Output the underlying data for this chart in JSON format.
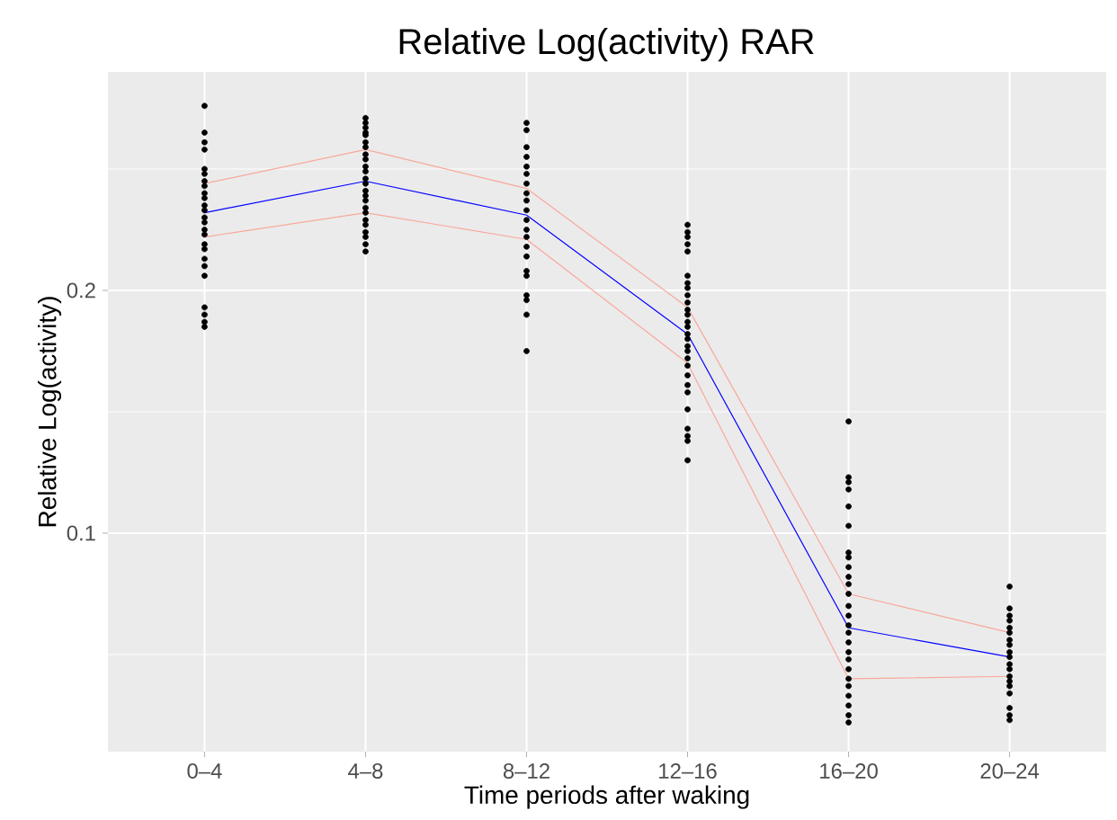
{
  "chart_data": {
    "type": "line",
    "title": "Relative Log(activity) RAR",
    "xlabel": "Time periods after waking",
    "ylabel": "Relative Log(activity)",
    "categories": [
      "0–4",
      "4–8",
      "8–12",
      "12–16",
      "16–20",
      "20–24"
    ],
    "ylim": [
      0.01,
      0.29
    ],
    "yticks": [
      {
        "value": 0.05,
        "label": null
      },
      0.1,
      {
        "value": 0.15,
        "label": null
      },
      0.2,
      {
        "value": 0.25,
        "label": null
      }
    ],
    "grid": true,
    "marker": "none",
    "line_style": "solid",
    "series": [
      {
        "color": "#f8a89a",
        "values": [
          0.244,
          0.258,
          0.242,
          0.193,
          0.075,
          0.059
        ]
      },
      {
        "color": "#f8a89a",
        "values": [
          0.222,
          0.232,
          0.221,
          0.17,
          0.04,
          0.041
        ]
      },
      {
        "color": "#0000ff",
        "values": [
          0.232,
          0.245,
          0.231,
          0.182,
          0.061,
          0.049
        ]
      },
      {
        "type": "scatter",
        "color": "#000000",
        "marker": "circle",
        "x": [
          "0–4",
          "0–4",
          "0–4",
          "0–4",
          "0–4",
          "0–4",
          "0–4",
          "0–4",
          "0–4",
          "0–4",
          "0–4",
          "0–4",
          "0–4",
          "0–4",
          "0–4",
          "0–4",
          "0–4",
          "0–4",
          "0–4",
          "0–4",
          "0–4",
          "0–4",
          "0–4",
          "0–4",
          "0–4",
          "4–8",
          "4–8",
          "4–8",
          "4–8",
          "4–8",
          "4–8",
          "4–8",
          "4–8",
          "4–8",
          "4–8",
          "4–8",
          "4–8",
          "4–8",
          "4–8",
          "4–8",
          "4–8",
          "4–8",
          "4–8",
          "4–8",
          "4–8",
          "4–8",
          "4–8",
          "4–8",
          "4–8",
          "8–12",
          "8–12",
          "8–12",
          "8–12",
          "8–12",
          "8–12",
          "8–12",
          "8–12",
          "8–12",
          "8–12",
          "8–12",
          "8–12",
          "8–12",
          "8–12",
          "8–12",
          "8–12",
          "8–12",
          "8–12",
          "8–12",
          "8–12",
          "8–12",
          "12–16",
          "12–16",
          "12–16",
          "12–16",
          "12–16",
          "12–16",
          "12–16",
          "12–16",
          "12–16",
          "12–16",
          "12–16",
          "12–16",
          "12–16",
          "12–16",
          "12–16",
          "12–16",
          "12–16",
          "12–16",
          "12–16",
          "12–16",
          "12–16",
          "12–16",
          "12–16",
          "12–16",
          "12–16",
          "12–16",
          "12–16",
          "12–16",
          "16–20",
          "16–20",
          "16–20",
          "16–20",
          "16–20",
          "16–20",
          "16–20",
          "16–20",
          "16–20",
          "16–20",
          "16–20",
          "16–20",
          "16–20",
          "16–20",
          "16–20",
          "16–20",
          "16–20",
          "16–20",
          "16–20",
          "16–20",
          "16–20",
          "16–20",
          "16–20",
          "16–20",
          "16–20",
          "16–20",
          "20–24",
          "20–24",
          "20–24",
          "20–24",
          "20–24",
          "20–24",
          "20–24",
          "20–24",
          "20–24",
          "20–24",
          "20–24",
          "20–24",
          "20–24",
          "20–24",
          "20–24",
          "20–24",
          "20–24",
          "20–24",
          "20–24"
        ],
        "values": [
          0.276,
          0.265,
          0.261,
          0.258,
          0.25,
          0.248,
          0.245,
          0.243,
          0.24,
          0.238,
          0.235,
          0.233,
          0.23,
          0.228,
          0.225,
          0.223,
          0.219,
          0.217,
          0.213,
          0.21,
          0.206,
          0.193,
          0.19,
          0.187,
          0.185,
          0.271,
          0.269,
          0.267,
          0.265,
          0.264,
          0.261,
          0.259,
          0.256,
          0.254,
          0.251,
          0.249,
          0.246,
          0.244,
          0.241,
          0.239,
          0.237,
          0.234,
          0.232,
          0.229,
          0.227,
          0.224,
          0.222,
          0.219,
          0.216,
          0.269,
          0.266,
          0.259,
          0.255,
          0.251,
          0.248,
          0.244,
          0.24,
          0.237,
          0.233,
          0.229,
          0.225,
          0.222,
          0.218,
          0.214,
          0.208,
          0.206,
          0.198,
          0.196,
          0.19,
          0.175,
          0.227,
          0.224,
          0.222,
          0.219,
          0.216,
          0.206,
          0.203,
          0.201,
          0.198,
          0.195,
          0.192,
          0.19,
          0.187,
          0.185,
          0.182,
          0.18,
          0.177,
          0.175,
          0.172,
          0.169,
          0.165,
          0.161,
          0.158,
          0.151,
          0.143,
          0.14,
          0.138,
          0.13,
          0.146,
          0.123,
          0.121,
          0.118,
          0.111,
          0.103,
          0.092,
          0.09,
          0.086,
          0.082,
          0.079,
          0.075,
          0.07,
          0.066,
          0.062,
          0.059,
          0.055,
          0.051,
          0.048,
          0.044,
          0.04,
          0.037,
          0.033,
          0.029,
          0.025,
          0.022,
          0.078,
          0.069,
          0.066,
          0.064,
          0.061,
          0.059,
          0.056,
          0.054,
          0.051,
          0.049,
          0.046,
          0.044,
          0.041,
          0.039,
          0.037,
          0.034,
          0.028,
          0.025,
          0.023
        ]
      }
    ]
  }
}
